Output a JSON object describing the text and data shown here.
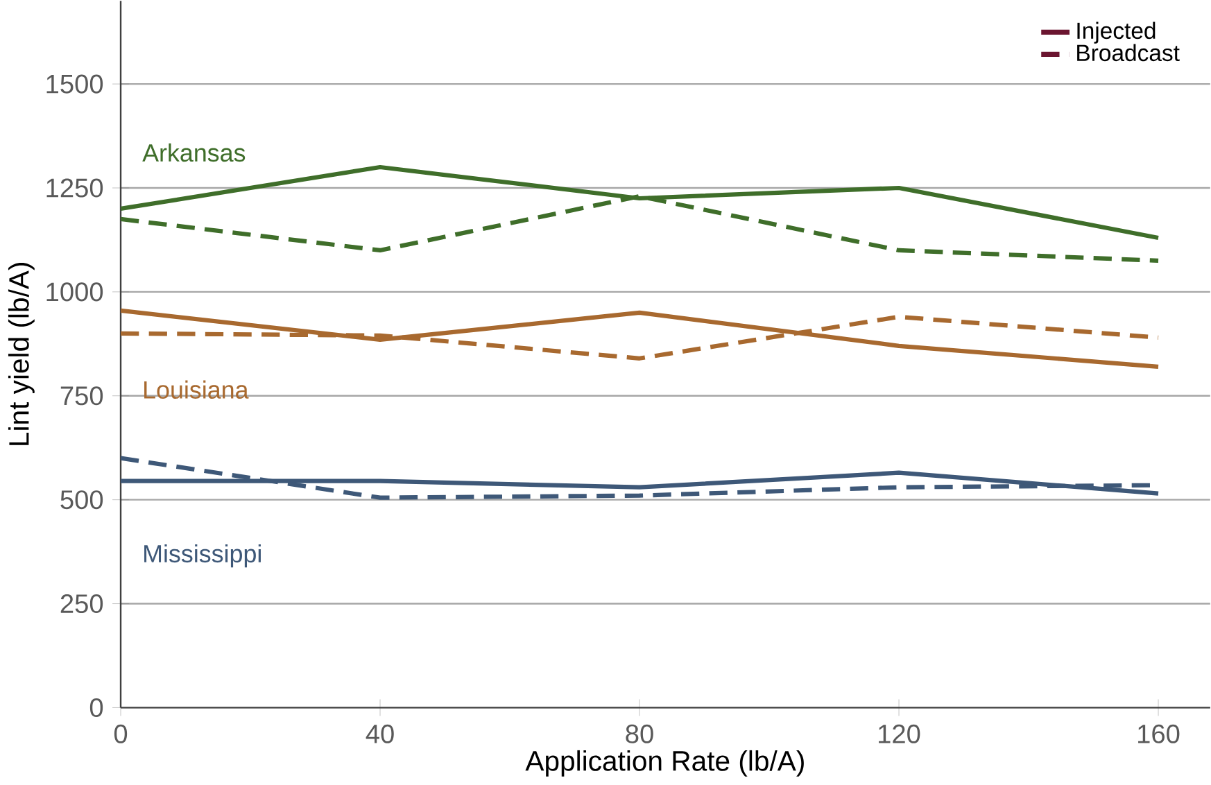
{
  "chart_data": {
    "type": "line",
    "xlabel": "Application Rate (lb/A)",
    "ylabel": "Lint yield (lb/A)",
    "x": [
      0,
      40,
      80,
      120,
      160
    ],
    "xlim": [
      0,
      168
    ],
    "xticks": [
      0,
      40,
      80,
      120,
      160
    ],
    "ylim": [
      0,
      1700
    ],
    "yticks": [
      0,
      250,
      500,
      750,
      1000,
      1250,
      1500
    ],
    "grid": "y",
    "legend": "top right",
    "marker": "none",
    "series": [
      {
        "color": "#3f6e2a",
        "line_style": "solid",
        "values": [
          1200,
          1300,
          1225,
          1250,
          1130
        ]
      },
      {
        "color": "#3f6e2a",
        "line_style": "dashed",
        "values": [
          1175,
          1100,
          1230,
          1100,
          1075
        ]
      },
      {
        "color": "#a8692f",
        "line_style": "solid",
        "values": [
          955,
          885,
          950,
          870,
          820
        ]
      },
      {
        "color": "#a8692f",
        "line_style": "dashed",
        "values": [
          900,
          895,
          840,
          940,
          890
        ]
      },
      {
        "color": "#3e5878",
        "line_style": "solid",
        "values": [
          545,
          545,
          530,
          565,
          515
        ]
      },
      {
        "color": "#3e5878",
        "line_style": "dashed",
        "values": [
          600,
          505,
          510,
          530,
          535
        ]
      },
      {
        "name": "Injected",
        "color": "#6b1530",
        "line_style": "solid",
        "values": [
          null,
          null,
          null,
          null,
          null
        ]
      },
      {
        "name": "Broadcast",
        "color": "#6b1530",
        "line_style": "dashed",
        "values": [
          null,
          null,
          null,
          null,
          null
        ]
      }
    ],
    "annotations": [
      "Arkansas",
      "Louisiana",
      "Mississippi"
    ]
  }
}
